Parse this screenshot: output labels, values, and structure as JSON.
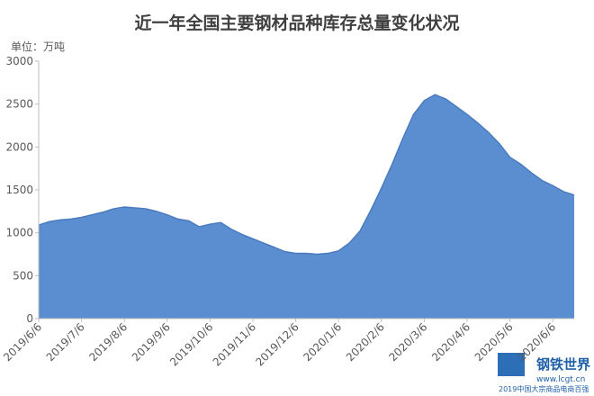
{
  "chart_data": {
    "type": "area",
    "title": "近一年全国主要钢材品种库存总量变化状况",
    "y_unit_label": "单位：万吨",
    "categories": [
      "2019/6/6",
      null,
      null,
      null,
      "2019/7/6",
      null,
      null,
      null,
      "2019/8/6",
      null,
      null,
      null,
      "2019/9/6",
      null,
      null,
      null,
      "2019/10/6",
      null,
      null,
      null,
      "2019/11/6",
      null,
      null,
      null,
      "2019/12/6",
      null,
      null,
      null,
      "2020/1/6",
      null,
      null,
      null,
      "2020/2/6",
      null,
      null,
      null,
      "2020/3/6",
      null,
      null,
      null,
      "2020/4/6",
      null,
      null,
      null,
      "2020/5/6",
      null,
      null,
      null,
      "2020/6/6",
      null,
      null
    ],
    "values": [
      1090,
      1130,
      1150,
      1160,
      1180,
      1210,
      1240,
      1280,
      1300,
      1290,
      1280,
      1250,
      1210,
      1160,
      1140,
      1070,
      1100,
      1120,
      1040,
      980,
      930,
      880,
      830,
      780,
      760,
      760,
      750,
      760,
      790,
      880,
      1020,
      1260,
      1520,
      1800,
      2100,
      2380,
      2540,
      2610,
      2560,
      2470,
      2380,
      2280,
      2170,
      2040,
      1880,
      1800,
      1700,
      1610,
      1550,
      1480,
      1440
    ],
    "color": "#5b8ed1",
    "line_color": "#4a7bbf",
    "ylim": [
      0,
      3000
    ],
    "yticks": [
      0,
      500,
      1000,
      1500,
      2000,
      2500,
      3000
    ],
    "grid": false
  },
  "watermark": {
    "brand": "钢铁世界",
    "url": "www.lcgt.cn",
    "caption": "2019中国大宗商品电商百强"
  }
}
